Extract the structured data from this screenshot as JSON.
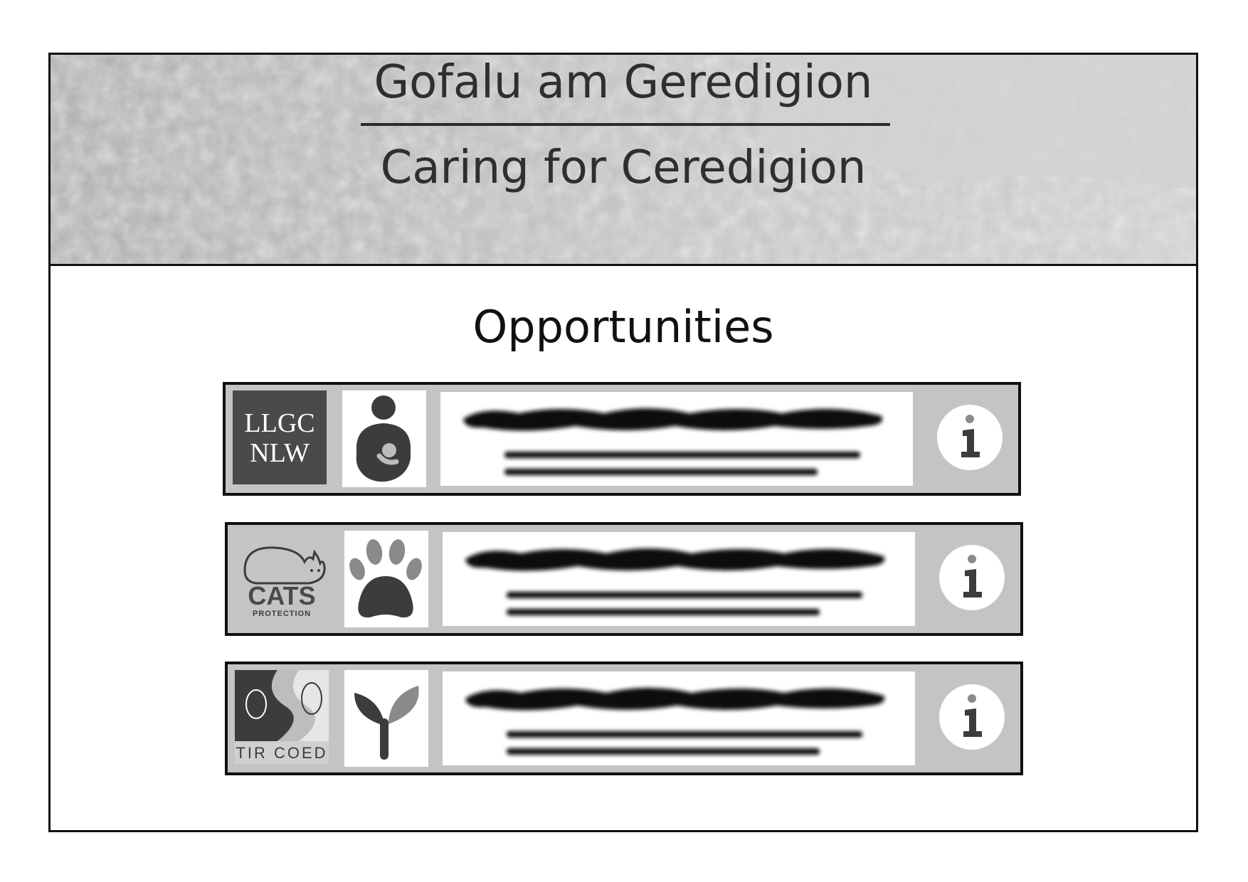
{
  "header": {
    "title_welsh": "Gofalu am Geredigion",
    "title_english": "Caring for Ceredigion"
  },
  "main": {
    "heading": "Opportunities",
    "cards": [
      {
        "org": "LLGC NLW",
        "org_lines": [
          "LLGC",
          "NLW"
        ],
        "category_icon": "person-caring-icon",
        "info_icon": "info-icon"
      },
      {
        "org": "CATS PROTECTION",
        "org_lines": [
          "CATS",
          "PROTECTION"
        ],
        "category_icon": "paw-icon",
        "info_icon": "info-icon"
      },
      {
        "org": "TIR COED",
        "org_lines": [
          "TIR COED"
        ],
        "category_icon": "seedling-icon",
        "info_icon": "info-icon"
      }
    ]
  },
  "colors": {
    "banner_gray": "#bdbdbd",
    "card_gray": "#c4c4c4",
    "icon_dark": "#3c3c3c"
  }
}
